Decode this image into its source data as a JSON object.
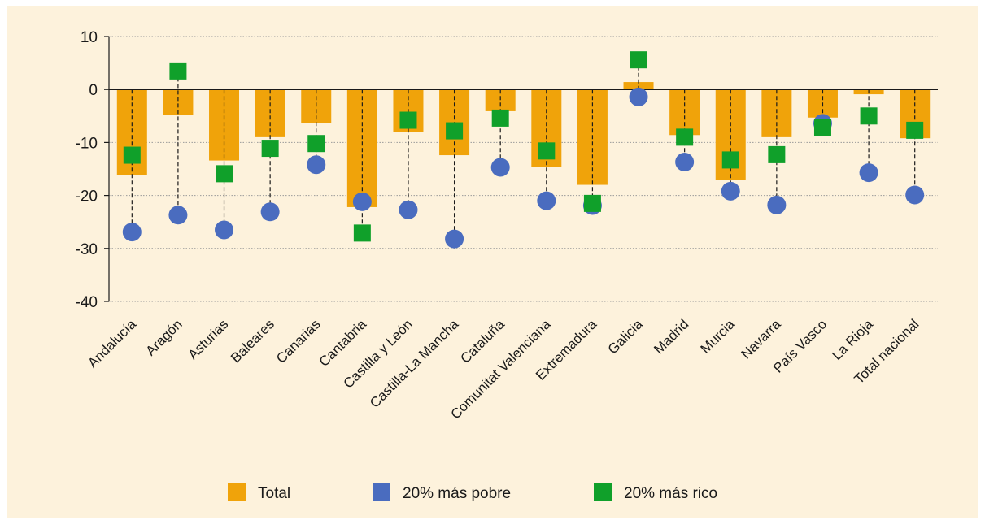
{
  "chart_data": {
    "type": "bar",
    "title": "",
    "xlabel": "",
    "ylabel": "",
    "ylim": [
      -40,
      10
    ],
    "yticks": [
      10,
      0,
      -10,
      -20,
      -30,
      -40
    ],
    "grid": true,
    "legend_position": "bottom",
    "categories": [
      "Andalucía",
      "Aragón",
      "Asturias",
      "Baleares",
      "Canarias",
      "Cantabria",
      "Castilla y León",
      "Castilla-La Mancha",
      "Cataluña",
      "Comunitat Valenciana",
      "Extremadura",
      "Galicia",
      "Madrid",
      "Murcia",
      "Navarra",
      "País Vasco",
      "La Rioja",
      "Total nacional"
    ],
    "series": [
      {
        "name": "Total",
        "marker": "bar",
        "color": "#f0a30a",
        "values": [
          -16.2,
          -4.8,
          -13.4,
          -9.0,
          -6.4,
          -22.2,
          -8.0,
          -12.4,
          -4.1,
          -14.6,
          -18.0,
          1.4,
          -8.6,
          -17.1,
          -9.0,
          -5.3,
          -0.9,
          -9.2
        ]
      },
      {
        "name": "20% más pobre",
        "marker": "circle",
        "color": "#4a6cbf",
        "values": [
          -26.9,
          -23.7,
          -26.5,
          -23.1,
          -14.2,
          -21.2,
          -22.7,
          -28.2,
          -14.7,
          -21.0,
          -21.9,
          -1.4,
          -13.7,
          -19.2,
          -21.8,
          -6.4,
          -15.7,
          -19.9
        ]
      },
      {
        "name": "20% más rico",
        "marker": "square",
        "color": "#10a02a",
        "values": [
          -12.4,
          3.5,
          -15.9,
          -11.1,
          -10.2,
          -27.1,
          -5.8,
          -7.8,
          -5.4,
          -11.6,
          -21.5,
          5.6,
          -9.0,
          -13.3,
          -12.3,
          -7.1,
          -5.0,
          -7.7
        ]
      }
    ]
  }
}
